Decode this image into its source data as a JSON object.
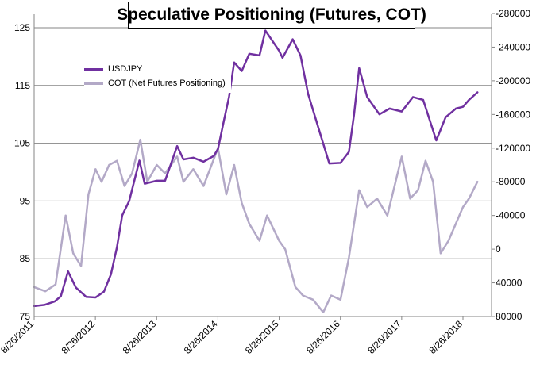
{
  "chart_data": {
    "type": "line",
    "title": "Speculative Positioning (Futures, COT)",
    "x_ticks": [
      "8/26/2011",
      "8/26/2012",
      "8/26/2013",
      "8/26/2014",
      "8/26/2015",
      "8/26/2016",
      "8/26/2017",
      "8/26/2018"
    ],
    "y_left": {
      "ylim": [
        75,
        125
      ],
      "ticks": [
        "75",
        "85",
        "95",
        "105",
        "115",
        "125"
      ]
    },
    "y_right": {
      "ylim": [
        80000,
        -280000
      ],
      "ticks": [
        "80000",
        "40000",
        "0",
        "-40000",
        "-80000",
        "-120000",
        "-160000",
        "-200000",
        "-240000",
        "-280000"
      ]
    },
    "grid": "horizontal",
    "legend_position": "top-left",
    "series": [
      {
        "name": "USDJPY",
        "axis": "left",
        "color": "#7030A0",
        "x": [
          "2011-08-26",
          "2011-10-26",
          "2011-12-26",
          "2012-02-01",
          "2012-03-15",
          "2012-05-01",
          "2012-07-01",
          "2012-08-26",
          "2012-10-15",
          "2012-11-26",
          "2013-01-01",
          "2013-02-01",
          "2013-03-15",
          "2013-05-15",
          "2013-06-15",
          "2013-08-26",
          "2013-10-15",
          "2013-12-26",
          "2014-02-01",
          "2014-04-01",
          "2014-06-01",
          "2014-08-01",
          "2014-08-26",
          "2014-10-01",
          "2014-10-31",
          "2014-12-01",
          "2015-01-15",
          "2015-03-01",
          "2015-05-01",
          "2015-06-05",
          "2015-08-26",
          "2015-09-15",
          "2015-11-15",
          "2015-12-31",
          "2016-02-15",
          "2016-04-15",
          "2016-06-20",
          "2016-08-26",
          "2016-10-15",
          "2016-11-15",
          "2016-12-15",
          "2017-02-01",
          "2017-04-15",
          "2017-06-15",
          "2017-08-26",
          "2017-11-01",
          "2018-01-01",
          "2018-03-20",
          "2018-05-15",
          "2018-07-15",
          "2018-08-26",
          "2018-10-01",
          "2018-11-20"
        ],
        "y": [
          76.8,
          77.0,
          77.6,
          78.5,
          82.8,
          80.0,
          78.4,
          78.3,
          79.3,
          82.3,
          87.0,
          92.5,
          95.0,
          102.0,
          98.0,
          98.5,
          98.5,
          104.5,
          102.2,
          102.5,
          101.8,
          102.8,
          104.0,
          109.0,
          113.0,
          119.0,
          117.5,
          120.5,
          120.2,
          124.5,
          121.0,
          119.8,
          123.0,
          120.2,
          113.5,
          107.8,
          101.5,
          101.6,
          103.5,
          110.0,
          118.0,
          113.0,
          110.0,
          111.0,
          110.5,
          113.0,
          112.5,
          105.5,
          109.5,
          111.0,
          111.3,
          112.5,
          113.8
        ]
      },
      {
        "name": "COT (Net Futures Positioning)",
        "axis": "right",
        "color": "#B3A9C7",
        "x": [
          "2011-08-26",
          "2011-11-01",
          "2012-01-01",
          "2012-03-01",
          "2012-04-15",
          "2012-06-01",
          "2012-07-15",
          "2012-08-26",
          "2012-10-01",
          "2012-11-15",
          "2013-01-01",
          "2013-02-15",
          "2013-04-01",
          "2013-05-20",
          "2013-07-01",
          "2013-08-26",
          "2013-10-15",
          "2013-12-26",
          "2014-02-01",
          "2014-04-01",
          "2014-06-01",
          "2014-08-26",
          "2014-10-15",
          "2014-12-01",
          "2015-01-15",
          "2015-03-01",
          "2015-05-01",
          "2015-06-15",
          "2015-08-26",
          "2015-10-01",
          "2015-12-01",
          "2016-01-15",
          "2016-03-15",
          "2016-05-15",
          "2016-07-01",
          "2016-08-26",
          "2016-10-15",
          "2016-12-15",
          "2017-02-01",
          "2017-04-01",
          "2017-06-01",
          "2017-08-26",
          "2017-10-15",
          "2017-12-01",
          "2018-01-15",
          "2018-03-01",
          "2018-04-15",
          "2018-06-01",
          "2018-08-26",
          "2018-10-01",
          "2018-11-20"
        ],
        "y": [
          45000,
          50000,
          42000,
          -40000,
          5000,
          20000,
          -65000,
          -95000,
          -80000,
          -100000,
          -105000,
          -75000,
          -90000,
          -130000,
          -80000,
          -100000,
          -90000,
          -110000,
          -80000,
          -95000,
          -75000,
          -120000,
          -65000,
          -100000,
          -55000,
          -30000,
          -10000,
          -40000,
          -10000,
          0,
          45000,
          55000,
          60000,
          75000,
          55000,
          60000,
          10000,
          -70000,
          -50000,
          -60000,
          -40000,
          -110000,
          -60000,
          -70000,
          -105000,
          -80000,
          5000,
          -10000,
          -50000,
          -60000,
          -80000
        ]
      }
    ]
  }
}
